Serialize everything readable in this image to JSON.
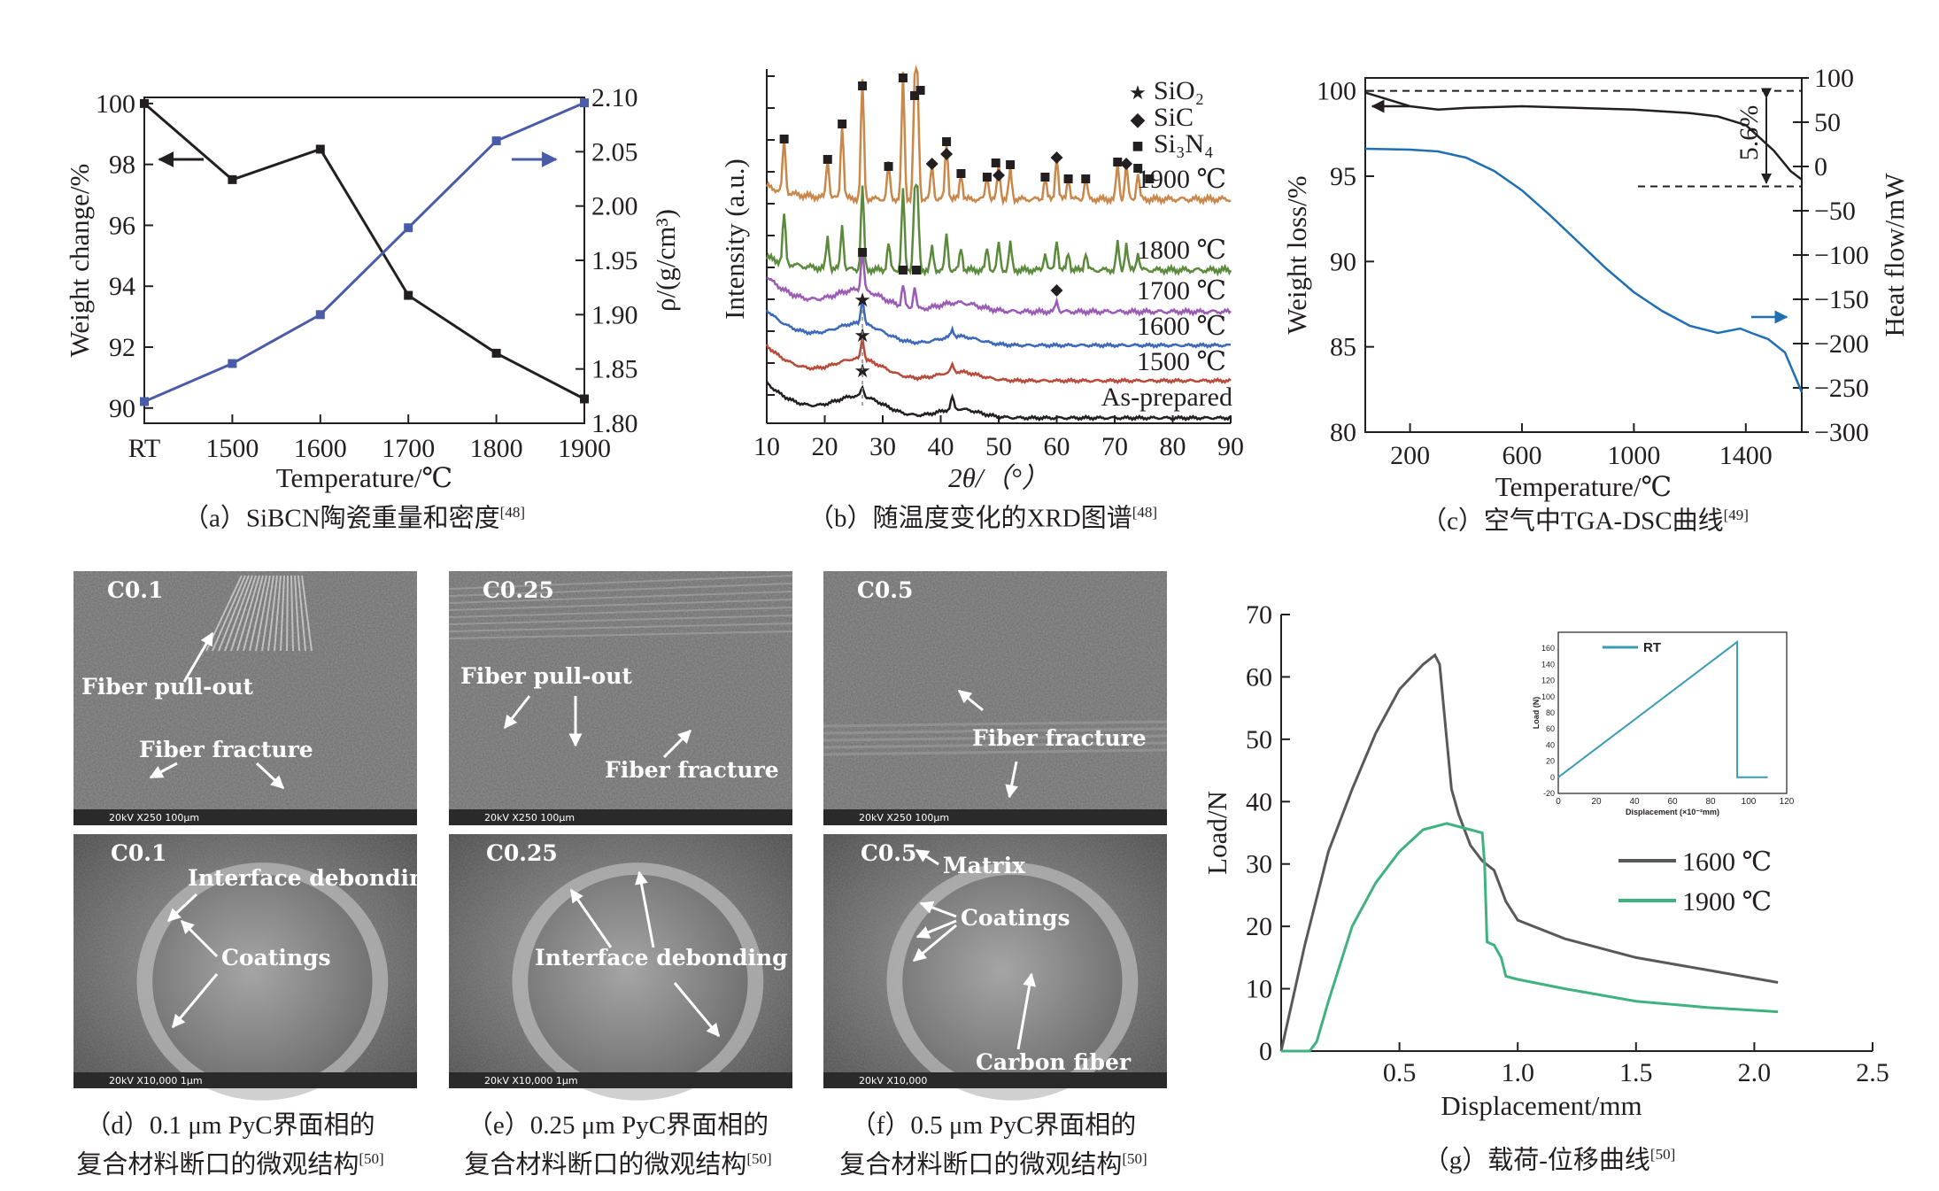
{
  "chart_data": [
    {
      "id": "a",
      "type": "line",
      "caption": "（a）SiBCN陶瓷重量和密度",
      "ref": "[48]",
      "categories": [
        "RT",
        "1500",
        "1600",
        "1700",
        "1800",
        "1900"
      ],
      "xlabel": "Temperature/℃",
      "ylabel": "Weight change/%",
      "ylabel2": "ρ/(g/cm³)",
      "ylim": [
        89.5,
        100.2
      ],
      "ylim2": [
        1.8,
        2.1
      ],
      "yticks": [
        90,
        92,
        94,
        96,
        98,
        100
      ],
      "yticks2": [
        "1.80",
        "1.85",
        "1.90",
        "1.95",
        "2.00",
        "2.05",
        "2.10"
      ],
      "series": [
        {
          "values": [
            100.0,
            97.5,
            98.5,
            93.7,
            91.8,
            90.3
          ],
          "color": "#231f20",
          "axis": "left"
        },
        {
          "values": [
            1.82,
            1.855,
            1.9,
            1.98,
            2.06,
            2.095
          ],
          "color": "#4a5ca8",
          "axis": "right"
        }
      ]
    },
    {
      "id": "b",
      "type": "line",
      "caption": "（b）随温度变化的XRD图谱",
      "ref": "[48]",
      "xlabel": "2θ/（°）",
      "ylabel": "Intensity (a.u.)",
      "xlim": [
        10,
        90
      ],
      "xticks": [
        10,
        20,
        30,
        40,
        50,
        60,
        70,
        80,
        90
      ],
      "legend": [
        {
          "symbol": "★",
          "label": "SiO₂"
        },
        {
          "symbol": "◆",
          "label": "SiC"
        },
        {
          "symbol": "■",
          "label": "Si₃N₄"
        }
      ],
      "series": [
        {
          "name": "1900 ℃",
          "color": "#c9874a"
        },
        {
          "name": "1800 ℃",
          "color": "#5c8a3c"
        },
        {
          "name": "1700 ℃",
          "color": "#9a5bb5"
        },
        {
          "name": "1600 ℃",
          "color": "#3b68b8"
        },
        {
          "name": "1500 ℃",
          "color": "#b84a3a"
        },
        {
          "name": "As-prepared",
          "color": "#231f20"
        }
      ]
    },
    {
      "id": "c",
      "type": "line",
      "caption": "（c）空气中TGA-DSC曲线",
      "ref": "[49]",
      "xlabel": "Temperature/℃",
      "ylabel": "Weight loss/%",
      "ylabel2": "Heat flow/mW",
      "xlim": [
        40,
        1600
      ],
      "xticks": [
        200,
        600,
        1000,
        1400
      ],
      "ylim": [
        80,
        100.5
      ],
      "yticks": [
        80,
        85,
        90,
        95,
        100
      ],
      "ylim2": [
        -300,
        100
      ],
      "yticks2": [
        -300,
        -250,
        -200,
        -150,
        -100,
        -50,
        0,
        50,
        100
      ],
      "annotation": "5.6%",
      "series": [
        {
          "axis": "left",
          "color": "#231f20",
          "x": [
            40,
            100,
            200,
            300,
            400,
            600,
            800,
            1000,
            1200,
            1300,
            1400,
            1500,
            1560,
            1600
          ],
          "y": [
            99.9,
            99.6,
            99.1,
            98.9,
            99.0,
            99.1,
            99.0,
            98.9,
            98.7,
            98.5,
            98.0,
            96.5,
            95.3,
            94.8
          ]
        },
        {
          "axis": "right",
          "color": "#1f6fb5",
          "x": [
            40,
            200,
            300,
            400,
            500,
            600,
            700,
            800,
            900,
            1000,
            1100,
            1200,
            1300,
            1380,
            1420,
            1480,
            1540,
            1580,
            1600
          ],
          "y": [
            20,
            19,
            17,
            10,
            -5,
            -27,
            -55,
            -85,
            -115,
            -142,
            -163,
            -180,
            -188,
            -183,
            -188,
            -195,
            -210,
            -240,
            -255
          ]
        }
      ]
    },
    {
      "id": "g",
      "type": "line",
      "caption": "（g）载荷-位移曲线",
      "ref": "[50]",
      "xlabel": "Displacement/mm",
      "ylabel": "Load/N",
      "xlim": [
        0,
        2.5
      ],
      "ylim": [
        0,
        70
      ],
      "xticks": [
        "0.5",
        "1.0",
        "1.5",
        "2.0",
        "2.5"
      ],
      "yticks": [
        0,
        10,
        20,
        30,
        40,
        50,
        60,
        70
      ],
      "series": [
        {
          "name": "1600 ℃",
          "color": "#58595b",
          "x": [
            0,
            0.1,
            0.2,
            0.3,
            0.4,
            0.5,
            0.6,
            0.65,
            0.67,
            0.7,
            0.72,
            0.75,
            0.8,
            0.85,
            0.9,
            0.95,
            1.0,
            1.2,
            1.5,
            1.8,
            2.1
          ],
          "y": [
            0,
            17,
            32,
            42,
            51,
            58,
            62,
            63.5,
            62,
            50,
            42,
            38,
            33,
            30.5,
            29,
            24,
            21,
            18,
            15,
            13,
            11
          ]
        },
        {
          "name": "1900 ℃",
          "color": "#3fb27f",
          "x": [
            0,
            0.12,
            0.15,
            0.2,
            0.3,
            0.4,
            0.5,
            0.6,
            0.7,
            0.75,
            0.8,
            0.85,
            0.86,
            0.87,
            0.9,
            0.93,
            0.95,
            1.0,
            1.2,
            1.5,
            1.8,
            2.1
          ],
          "y": [
            0,
            0,
            1.5,
            8,
            20,
            27,
            32,
            35.5,
            36.5,
            36,
            35.5,
            35,
            30,
            17.5,
            17,
            15,
            12,
            11.5,
            10,
            8,
            7,
            6.3
          ]
        }
      ],
      "inset": {
        "type": "line",
        "name": "RT",
        "xlabel": "Displacement (×10⁻²mm)",
        "ylabel": "Load (N)",
        "xlim": [
          0,
          120
        ],
        "ylim": [
          -20,
          180
        ],
        "xticks": [
          0,
          20,
          40,
          60,
          80,
          100,
          120
        ],
        "yticks": [
          -20,
          0,
          20,
          40,
          60,
          80,
          100,
          120,
          140,
          160
        ],
        "color": "#3a9bb5",
        "x": [
          0,
          94,
          94,
          96,
          110
        ],
        "y": [
          0,
          168,
          0,
          0,
          0
        ]
      }
    }
  ],
  "sem": [
    {
      "top": {
        "tag": "C0.1",
        "labels": [
          "Fiber pull-out",
          "Fiber fracture"
        ],
        "scale": "20kV   X250   100μm"
      },
      "bottom": {
        "tag": "C0.1",
        "labels": [
          "Interface debonding",
          "Coatings"
        ],
        "scale": "20kV   X10,000   1μm"
      },
      "caption1": "（d）0.1 μm PyC界面相的",
      "caption2": "复合材料断口的微观结构",
      "ref": "[50]"
    },
    {
      "top": {
        "tag": "C0.25",
        "labels": [
          "Fiber pull-out",
          "Fiber fracture"
        ],
        "scale": "20kV   X250   100μm"
      },
      "bottom": {
        "tag": "C0.25",
        "labels": [
          "Interface debonding"
        ],
        "scale": "20kV   X10,000   1μm"
      },
      "caption1": "（e）0.25 μm PyC界面相的",
      "caption2": "复合材料断口的微观结构",
      "ref": "[50]"
    },
    {
      "top": {
        "tag": "C0.5",
        "labels": [
          "Fiber fracture"
        ],
        "scale": "20kV   X250   100μm"
      },
      "bottom": {
        "tag": "C0.5",
        "labels": [
          "Matrix",
          "Coatings",
          "Carbon fiber"
        ],
        "scale": "20kV   X10,000"
      },
      "caption1": "（f）0.5 μm PyC界面相的",
      "caption2": "复合材料断口的微观结构",
      "ref": "[50]"
    }
  ]
}
